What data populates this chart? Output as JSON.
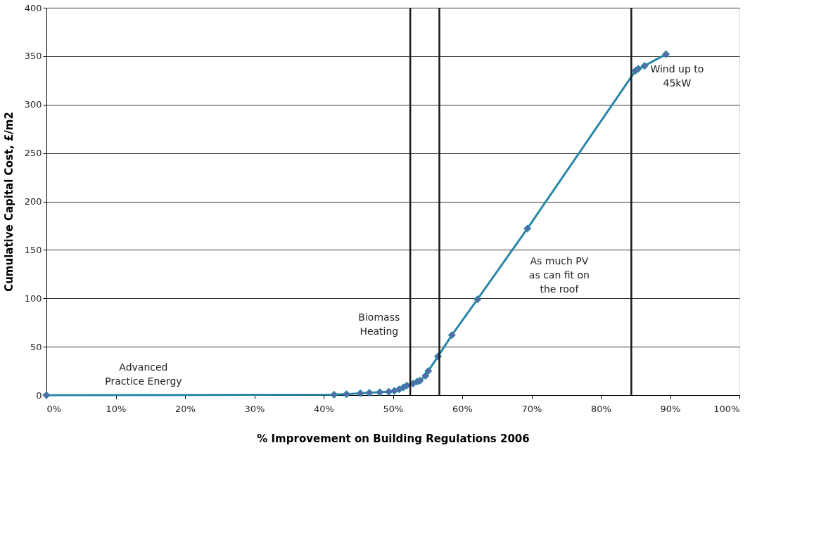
{
  "chart_data": {
    "type": "line",
    "xlabel": "% Improvement on Building Regulations 2006",
    "ylabel": "Cumulative Capital Cost, £/m2",
    "x": [
      0,
      41.5,
      43.3,
      45.3,
      46.6,
      48.1,
      49.4,
      50.2,
      50.9,
      51.5,
      52.0,
      52.9,
      53.5,
      53.9,
      54.7,
      55.1,
      56.5,
      58.5,
      62.2,
      69.4,
      85.0,
      85.4,
      86.3,
      89.4
    ],
    "series": [
      {
        "color": "#2a87a8",
        "values": [
          0,
          0.5,
          1,
          2,
          2.5,
          3,
          3.5,
          4.5,
          6,
          8,
          10,
          12,
          14,
          15,
          20,
          25,
          40,
          62,
          99,
          172,
          335,
          337,
          340,
          352
        ]
      }
    ],
    "marker": "diamond",
    "xlim": [
      0,
      100
    ],
    "xticks": [
      {
        "value": 0,
        "label": "0%"
      },
      {
        "value": 10,
        "label": "10%"
      },
      {
        "value": 20,
        "label": "20%"
      },
      {
        "value": 30,
        "label": "30%"
      },
      {
        "value": 40,
        "label": "40%"
      },
      {
        "value": 50,
        "label": "50%"
      },
      {
        "value": 60,
        "label": "60%"
      },
      {
        "value": 70,
        "label": "70%"
      },
      {
        "value": 80,
        "label": "80%"
      },
      {
        "value": 90,
        "label": "90%"
      },
      {
        "value": 100,
        "label": "100%"
      }
    ],
    "ylim": [
      0,
      400
    ],
    "yticks": [
      0,
      50,
      100,
      150,
      200,
      250,
      300,
      350,
      400
    ],
    "grid": "y",
    "ref_lines": [
      {
        "axis": "x",
        "value": 52.5,
        "color": "#1a1a1a"
      },
      {
        "axis": "x",
        "value": 56.7,
        "color": "#1a1a1a"
      },
      {
        "axis": "x",
        "value": 84.4,
        "color": "#1a1a1a"
      }
    ],
    "annotations": [
      "Advanced\nPractice Energy",
      "Biomass\nHeating",
      "As much PV\nas can fit on\nthe roof",
      "Wind up to\n45kW"
    ]
  }
}
